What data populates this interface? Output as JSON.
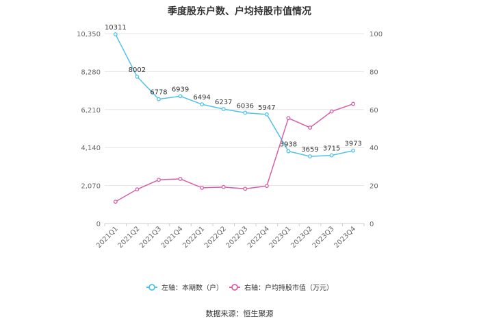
{
  "title": "季度股东户数、户均持股市值情况",
  "source": "数据来源：恒生聚源",
  "chart_data": {
    "type": "line",
    "categories": [
      "2021Q1",
      "2021Q2",
      "2021Q3",
      "2021Q4",
      "2022Q1",
      "2022Q2",
      "2022Q3",
      "2022Q4",
      "2023Q1",
      "2023Q2",
      "2023Q3",
      "2023Q4"
    ],
    "left_axis": {
      "min": 0,
      "max": 10350,
      "ticks": [
        0,
        2070,
        4140,
        6210,
        8280,
        10350
      ],
      "tick_labels": [
        "0",
        "2,070",
        "4,140",
        "6,210",
        "8,280",
        "10,350"
      ]
    },
    "right_axis": {
      "min": 0,
      "max": 100,
      "ticks": [
        0,
        20,
        40,
        60,
        80,
        100
      ],
      "tick_labels": [
        "0",
        "20",
        "40",
        "60",
        "80",
        "100"
      ]
    },
    "series": [
      {
        "name": "左轴：本期数（户）",
        "axis": "left",
        "color": "#4fc1e9",
        "values": [
          10311,
          8002,
          6778,
          6939,
          6494,
          6237,
          6036,
          5947,
          3938,
          3659,
          3715,
          3973
        ],
        "labels": [
          "10311",
          "8002",
          "6778",
          "6939",
          "6494",
          "6237",
          "6036",
          "5947",
          "3938",
          "3659",
          "3715",
          "3973"
        ]
      },
      {
        "name": "右轴：户均持股市值（万元）",
        "axis": "right",
        "color": "#d65fa7",
        "values": [
          11.5,
          18,
          23,
          23.5,
          18.8,
          19.2,
          18.3,
          19.8,
          55.5,
          50.5,
          59,
          63
        ]
      }
    ],
    "grid": true,
    "legend_position": "bottom"
  }
}
